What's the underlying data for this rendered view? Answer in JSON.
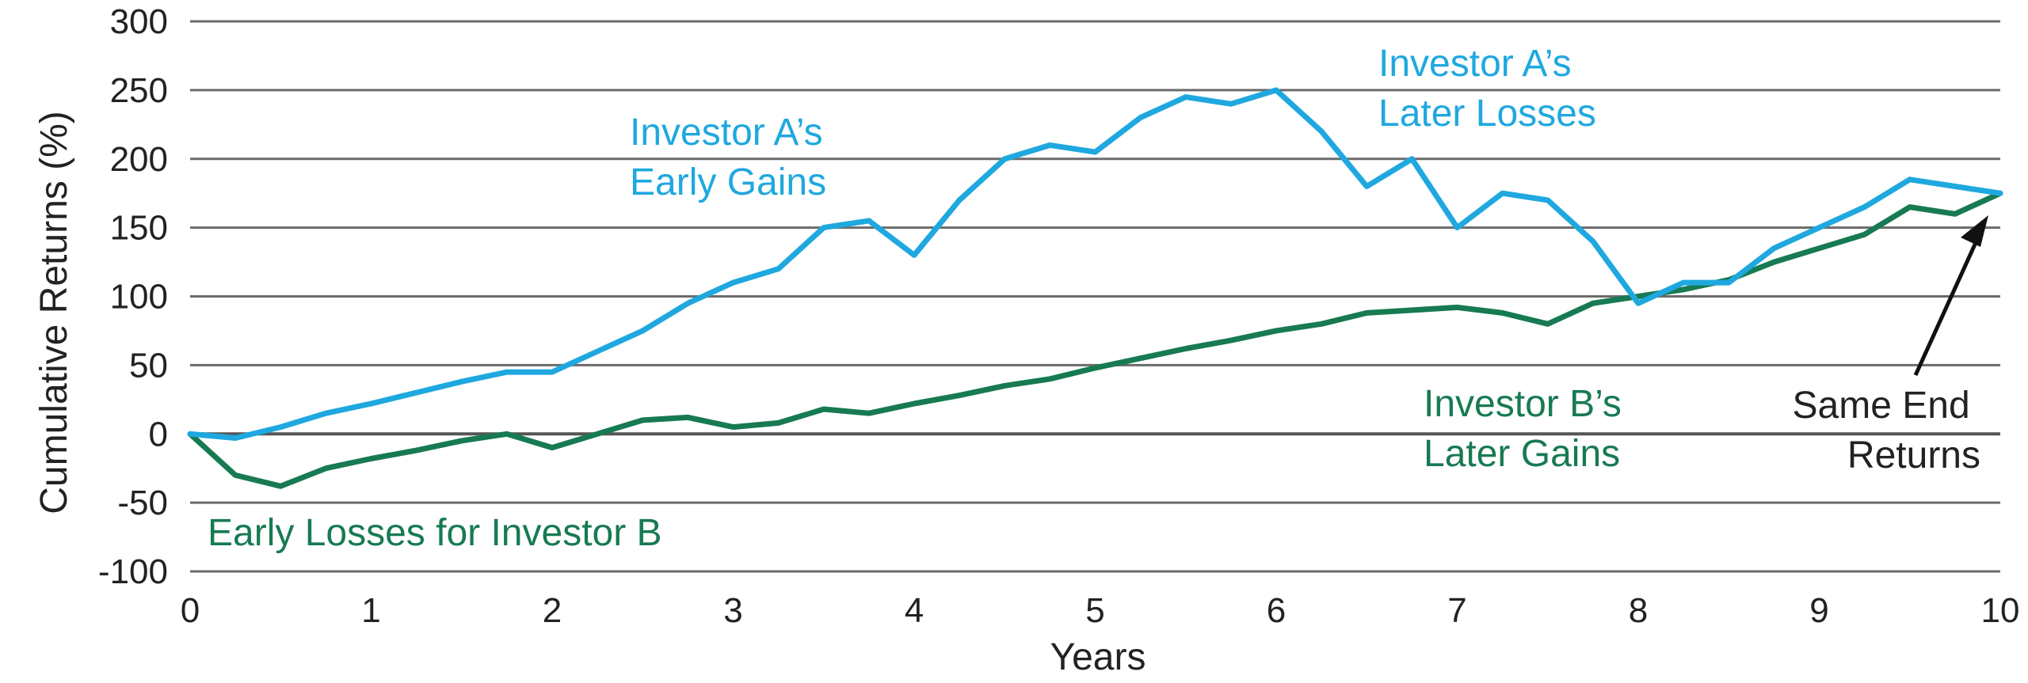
{
  "chart_data": {
    "type": "line",
    "xlabel": "Years",
    "ylabel": "Cumulative Returns (%)",
    "xlim": [
      0,
      10
    ],
    "ylim": [
      -100,
      300
    ],
    "x_ticks": [
      "0",
      "1",
      "2",
      "3",
      "4",
      "5",
      "6",
      "7",
      "8",
      "9",
      "10"
    ],
    "y_ticks": [
      "300",
      "250",
      "200",
      "150",
      "100",
      "50",
      "0",
      "-50",
      "-100"
    ],
    "grid": true,
    "legend": "none",
    "colors": {
      "investor_a": "#1fa8df",
      "investor_b": "#177a52",
      "arrow": "#111111"
    },
    "series": [
      {
        "key": "investor_a",
        "x": [
          0,
          0.25,
          0.5,
          0.75,
          1,
          1.25,
          1.5,
          1.75,
          2,
          2.25,
          2.5,
          2.75,
          3,
          3.25,
          3.5,
          3.75,
          4,
          4.25,
          4.5,
          4.75,
          5,
          5.25,
          5.5,
          5.75,
          6,
          6.25,
          6.5,
          6.75,
          7,
          7.25,
          7.5,
          7.75,
          8,
          8.25,
          8.5,
          8.75,
          9,
          9.25,
          9.5,
          9.75,
          10
        ],
        "values": [
          0,
          -3,
          5,
          15,
          22,
          30,
          38,
          45,
          45,
          60,
          75,
          95,
          110,
          120,
          150,
          155,
          130,
          170,
          200,
          210,
          205,
          230,
          245,
          240,
          250,
          220,
          180,
          200,
          150,
          175,
          170,
          140,
          95,
          110,
          110,
          135,
          150,
          165,
          185,
          180,
          175
        ]
      },
      {
        "key": "investor_b",
        "x": [
          0,
          0.25,
          0.5,
          0.75,
          1,
          1.25,
          1.5,
          1.75,
          2,
          2.25,
          2.5,
          2.75,
          3,
          3.25,
          3.5,
          3.75,
          4,
          4.25,
          4.5,
          4.75,
          5,
          5.25,
          5.5,
          5.75,
          6,
          6.25,
          6.5,
          6.75,
          7,
          7.25,
          7.5,
          7.75,
          8,
          8.25,
          8.5,
          8.75,
          9,
          9.25,
          9.5,
          9.75,
          10
        ],
        "values": [
          0,
          -30,
          -38,
          -25,
          -18,
          -12,
          -5,
          0,
          -10,
          0,
          10,
          12,
          5,
          8,
          18,
          15,
          22,
          28,
          35,
          40,
          48,
          55,
          62,
          68,
          75,
          80,
          88,
          90,
          92,
          88,
          80,
          95,
          100,
          105,
          112,
          125,
          135,
          145,
          165,
          160,
          175
        ]
      }
    ],
    "annotations": {
      "a_early": [
        "Investor A’s",
        "Early Gains"
      ],
      "a_later": [
        "Investor A’s",
        "Later Losses"
      ],
      "b_later": [
        "Investor B’s",
        "Later Gains"
      ],
      "b_early": "Early Losses for Investor B",
      "same_end": [
        "Same End",
        "Returns"
      ]
    }
  }
}
